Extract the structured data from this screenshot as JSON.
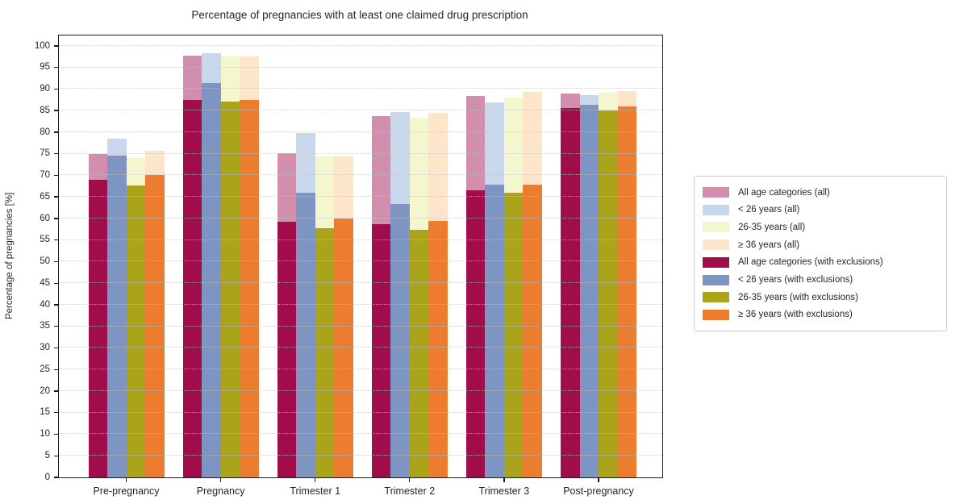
{
  "chart_data": {
    "type": "bar",
    "title": "Percentage of pregnancies with at least one claimed drug prescription",
    "xlabel": "",
    "ylabel": "Percentage of pregnancies [%]",
    "categories": [
      "Pre-pregnancy",
      "Pregnancy",
      "Trimester 1",
      "Trimester 2",
      "Trimester 3",
      "Post-pregnancy"
    ],
    "y_ticks": [
      0,
      5,
      10,
      15,
      20,
      25,
      30,
      35,
      40,
      45,
      50,
      55,
      60,
      65,
      70,
      75,
      80,
      85,
      90,
      95,
      100
    ],
    "ylim": [
      0,
      102.4
    ],
    "grid": "horizontal-dotted",
    "legend_position": "outside-right",
    "bar_style": "overlaid: '(all)' series drawn as full-height light bars behind matching darker '(with exclusions)' bars",
    "series": [
      {
        "name": "All age categories (all)",
        "group": "all",
        "color": "#d28fad",
        "values": [
          75.0,
          97.7,
          75.1,
          83.8,
          88.3,
          88.9
        ]
      },
      {
        "name": "< 26 years (all)",
        "group": "all",
        "color": "#c9d7ec",
        "values": [
          78.5,
          98.2,
          79.7,
          84.7,
          86.8,
          88.6
        ]
      },
      {
        "name": "26-35 years (all)",
        "group": "all",
        "color": "#f4f6cd",
        "values": [
          74.0,
          97.6,
          74.3,
          83.3,
          88.0,
          89.2
        ]
      },
      {
        "name": "≥ 36 years (all)",
        "group": "all",
        "color": "#fce5c9",
        "values": [
          75.6,
          97.5,
          74.3,
          84.5,
          89.3,
          89.5
        ]
      },
      {
        "name": "All age categories (with exclusions)",
        "group": "with_exclusions",
        "color": "#a10d4a",
        "values": [
          69.0,
          87.5,
          59.2,
          58.6,
          66.6,
          85.5
        ]
      },
      {
        "name": "< 26 years (with exclusions)",
        "group": "with_exclusions",
        "color": "#7e95c4",
        "values": [
          74.5,
          91.4,
          65.9,
          63.3,
          67.9,
          86.3
        ]
      },
      {
        "name": "26-35 years (with exclusions)",
        "group": "with_exclusions",
        "color": "#aaa41a",
        "values": [
          67.7,
          87.0,
          57.8,
          57.3,
          66.0,
          85.0
        ]
      },
      {
        "name": "≥ 36 years (with exclusions)",
        "group": "with_exclusions",
        "color": "#ec7d2e",
        "values": [
          70.0,
          87.4,
          59.9,
          59.4,
          67.9,
          85.9
        ]
      }
    ],
    "colors": {
      "axis": "#1a1a1a",
      "grid": "#c3c3c3",
      "legend_border": "#cccccc",
      "text": "#262626"
    }
  }
}
